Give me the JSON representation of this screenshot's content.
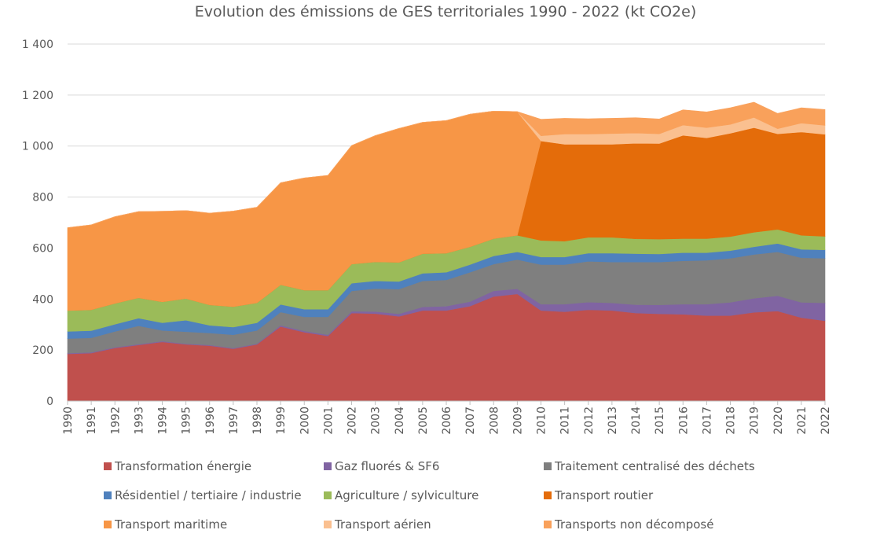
{
  "chart_data": {
    "type": "area",
    "title": "Evolution des émissions de GES territoriales 1990 - 2022 (kt CO2e)",
    "xlabel": "",
    "ylabel": "",
    "ylim": [
      0,
      1400
    ],
    "yticks": [
      0,
      200,
      400,
      600,
      800,
      1000,
      1200,
      1400
    ],
    "ytick_labels": [
      "0",
      "200",
      "400",
      "600",
      "800",
      "1 000",
      "1 200",
      "1 400"
    ],
    "categories": [
      "1990",
      "1991",
      "1992",
      "1993",
      "1994",
      "1995",
      "1996",
      "1997",
      "1998",
      "1999",
      "2000",
      "2001",
      "2002",
      "2003",
      "2004",
      "2005",
      "2006",
      "2007",
      "2008",
      "2009",
      "2010",
      "2011",
      "2012",
      "2013",
      "2014",
      "2015",
      "2016",
      "2017",
      "2018",
      "2019",
      "2020",
      "2021",
      "2022"
    ],
    "grid": "horizontal",
    "legend_position": "bottom",
    "series": [
      {
        "name": "Transformation énergie",
        "color": "#c0504d",
        "values": [
          185,
          188,
          208,
          220,
          232,
          222,
          217,
          205,
          222,
          292,
          270,
          255,
          345,
          343,
          332,
          355,
          355,
          372,
          410,
          420,
          355,
          350,
          358,
          355,
          345,
          342,
          340,
          335,
          335,
          348,
          353,
          327,
          315
        ]
      },
      {
        "name": "Gaz fluorés & SF6",
        "color": "#8064a2",
        "values": [
          3,
          3,
          3,
          3,
          3,
          3,
          3,
          3,
          3,
          5,
          5,
          5,
          7,
          8,
          10,
          14,
          17,
          18,
          22,
          20,
          25,
          30,
          30,
          30,
          33,
          35,
          40,
          45,
          52,
          55,
          60,
          60,
          70
        ]
      },
      {
        "name": "Traitement centralisé des déchets",
        "color": "#7f7f7f",
        "values": [
          57,
          57,
          62,
          72,
          42,
          47,
          47,
          52,
          52,
          52,
          55,
          70,
          80,
          90,
          97,
          102,
          103,
          115,
          105,
          115,
          155,
          155,
          160,
          160,
          167,
          168,
          170,
          172,
          173,
          172,
          172,
          175,
          175
        ]
      },
      {
        "name": "Résidentiel / tertiaire / industrie",
        "color": "#4f81bd",
        "values": [
          28,
          28,
          28,
          30,
          30,
          45,
          30,
          30,
          30,
          30,
          30,
          30,
          30,
          30,
          30,
          30,
          30,
          30,
          32,
          30,
          30,
          30,
          32,
          35,
          33,
          32,
          32,
          30,
          30,
          30,
          33,
          33,
          33
        ]
      },
      {
        "name": "Agriculture / sylviculture",
        "color": "#9bbb59",
        "values": [
          82,
          82,
          82,
          80,
          82,
          85,
          80,
          80,
          78,
          77,
          75,
          75,
          75,
          75,
          75,
          77,
          75,
          70,
          68,
          65,
          65,
          62,
          62,
          62,
          58,
          58,
          55,
          55,
          55,
          57,
          55,
          55,
          53
        ]
      },
      {
        "name": "Transport routier",
        "color": "#e46c0a",
        "values": [
          0,
          0,
          0,
          0,
          0,
          0,
          0,
          0,
          0,
          0,
          0,
          0,
          0,
          0,
          0,
          0,
          0,
          0,
          0,
          0,
          390,
          380,
          365,
          365,
          375,
          375,
          405,
          395,
          405,
          410,
          375,
          405,
          400
        ]
      },
      {
        "name": "Transport maritime",
        "color": "#f79646",
        "values": [
          325,
          333,
          340,
          338,
          355,
          345,
          360,
          375,
          375,
          400,
          440,
          450,
          465,
          495,
          525,
          515,
          520,
          520,
          500,
          485,
          0,
          0,
          0,
          0,
          0,
          0,
          0,
          0,
          0,
          0,
          0,
          0,
          0
        ]
      },
      {
        "name": "Transport aérien",
        "color": "#fac090",
        "values": [
          0,
          0,
          0,
          0,
          0,
          0,
          0,
          0,
          0,
          0,
          0,
          0,
          0,
          0,
          0,
          0,
          0,
          0,
          0,
          0,
          20,
          40,
          40,
          42,
          40,
          38,
          40,
          40,
          35,
          40,
          20,
          35,
          35
        ]
      },
      {
        "name": "Transports non décomposé",
        "color": "#f9a15b",
        "values": [
          0,
          0,
          0,
          0,
          0,
          0,
          0,
          0,
          0,
          0,
          0,
          0,
          0,
          0,
          0,
          0,
          0,
          0,
          0,
          0,
          65,
          62,
          60,
          60,
          60,
          58,
          60,
          62,
          65,
          60,
          60,
          60,
          62
        ]
      }
    ]
  }
}
